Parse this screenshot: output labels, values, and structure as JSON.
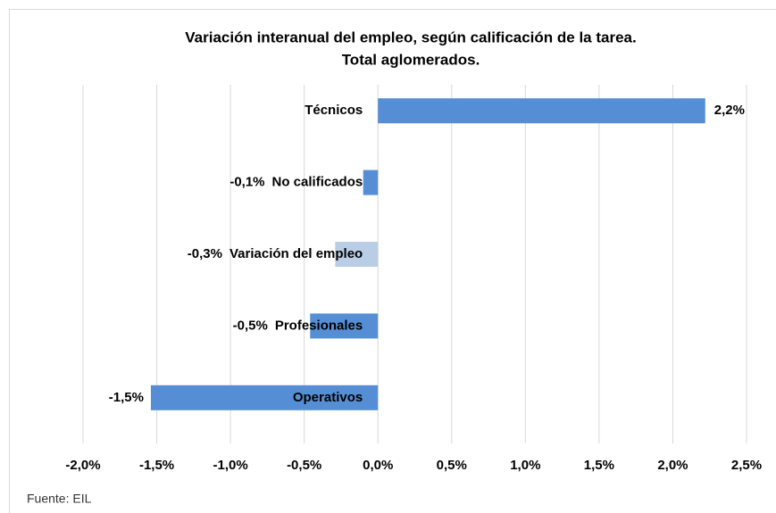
{
  "chart_data": {
    "type": "hbar",
    "title": [
      "Variación interanual del empleo, según calificación de la tarea.",
      "Total aglomerados."
    ],
    "categories": [
      "Técnicos",
      "No calificados",
      "Variación del empleo",
      "Profesionales",
      "Operativos"
    ],
    "values": [
      2.22,
      -0.1,
      -0.29,
      -0.46,
      -1.54
    ],
    "value_labels": [
      "2,2%",
      "-0,1%",
      "-0,3%",
      "-0,5%",
      "-1,5%"
    ],
    "colors": [
      "#558ed5",
      "#558ed5",
      "#b9cde5",
      "#558ed5",
      "#558ed5"
    ],
    "xlim": [
      -2.0,
      2.5
    ],
    "xticks": [
      {
        "value": -2.0,
        "label": "-2,0%"
      },
      {
        "value": -1.5,
        "label": "-1,5%"
      },
      {
        "value": -1.0,
        "label": "-1,0%"
      },
      {
        "value": -0.5,
        "label": "-0,5%"
      },
      {
        "value": 0,
        "label": "0,0%"
      },
      {
        "value": 0.5,
        "label": "0,5%"
      },
      {
        "value": 1.0,
        "label": "1,0%"
      },
      {
        "value": 1.5,
        "label": "1,5%"
      },
      {
        "value": 2.0,
        "label": "2,0%"
      },
      {
        "value": 2.5,
        "label": "2,5%"
      }
    ],
    "grid": true,
    "note": "Fuente: EIL"
  }
}
